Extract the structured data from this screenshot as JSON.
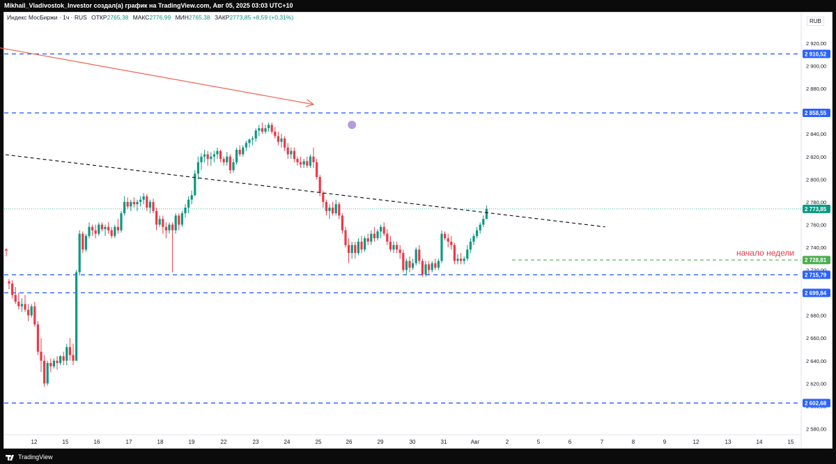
{
  "header": {
    "title": "Mikhail_Vladivostok_Investor создал(а) график на TradingView.com, Авг 05, 2025 03:03 UTC+10"
  },
  "legend": {
    "symbol": "Индекс МосБиржи · 1ч · RUS",
    "open_label": "ОТКР",
    "open_value": "2765,38",
    "high_label": "МАКС",
    "high_value": "2776,99",
    "low_label": "МИН",
    "low_value": "2765,38",
    "close_label": "ЗАКР",
    "close_value": "2773,85",
    "change": "+8,59 (+0,31%)"
  },
  "currency": "RUB",
  "footer": {
    "brand": "TradingView"
  },
  "colors": {
    "up": "#089981",
    "down": "#f23645",
    "level_line": "#2962ff",
    "trend_red": "#f0624f",
    "trend_black": "#131722",
    "annotation": "#f23645",
    "green_level": "#4caf50",
    "marker": "#b39ddb"
  },
  "chart_data": {
    "type": "candlestick",
    "y_axis": {
      "min": 2570,
      "max": 2930,
      "ticks": [
        "2 920,00",
        "2 900,00",
        "2 880,00",
        "2 860,00",
        "2 840,00",
        "2 820,00",
        "2 800,00",
        "2 780,00",
        "2 760,00",
        "2 740,00",
        "2 720,00",
        "2 700,00",
        "2 680,00",
        "2 660,00",
        "2 640,00",
        "2 620,00",
        "2 600,00",
        "2 580,00"
      ]
    },
    "x_axis": {
      "labels": [
        "12",
        "15",
        "16",
        "17",
        "18",
        "19",
        "22",
        "23",
        "24",
        "25",
        "26",
        "29",
        "30",
        "31",
        "Авг",
        "2",
        "5",
        "6",
        "7",
        "8",
        "9",
        "12",
        "13",
        "14",
        "15"
      ]
    },
    "horizontal_levels": [
      {
        "value": 2910.52,
        "label": "2 910,52",
        "style": "dashed-blue"
      },
      {
        "value": 2858.55,
        "label": "2 858,55",
        "style": "dashed-blue"
      },
      {
        "value": 2715.79,
        "label": "2 715,79",
        "style": "dashed-blue"
      },
      {
        "value": 2699.84,
        "label": "2 699,84",
        "style": "dashed-blue"
      },
      {
        "value": 2602.68,
        "label": "2 602,68",
        "style": "dashed-blue"
      }
    ],
    "last_price": {
      "value": 2773.85,
      "label": "2 773,85"
    },
    "week_open": {
      "value": 2728.81,
      "label": "2 728,81",
      "annotation": "начало недели"
    },
    "trendlines": [
      {
        "name": "red-arrow",
        "from": {
          "bar": -5,
          "price": 2917
        },
        "to": {
          "bar": 95,
          "price": 2866
        }
      },
      {
        "name": "black-dashed",
        "from": {
          "bar": -5,
          "price": 2823
        },
        "to": {
          "bar": 186,
          "price": 2758
        }
      }
    ],
    "marker": {
      "bar": 107,
      "price": 2848
    },
    "candles": [
      [
        2710,
        2712,
        2703,
        2708
      ],
      [
        2708,
        2711,
        2695,
        2698
      ],
      [
        2698,
        2705,
        2690,
        2692
      ],
      [
        2692,
        2700,
        2685,
        2688
      ],
      [
        2688,
        2695,
        2683,
        2690
      ],
      [
        2690,
        2698,
        2683,
        2685
      ],
      [
        2685,
        2690,
        2675,
        2680
      ],
      [
        2680,
        2690,
        2678,
        2688
      ],
      [
        2688,
        2692,
        2670,
        2672
      ],
      [
        2672,
        2675,
        2645,
        2648
      ],
      [
        2648,
        2660,
        2630,
        2640
      ],
      [
        2640,
        2645,
        2617,
        2620
      ],
      [
        2620,
        2640,
        2618,
        2638
      ],
      [
        2638,
        2642,
        2630,
        2635
      ],
      [
        2635,
        2642,
        2633,
        2640
      ],
      [
        2640,
        2644,
        2632,
        2638
      ],
      [
        2638,
        2645,
        2636,
        2644
      ],
      [
        2644,
        2648,
        2636,
        2640
      ],
      [
        2640,
        2655,
        2636,
        2652
      ],
      [
        2652,
        2660,
        2640,
        2645
      ],
      [
        2645,
        2655,
        2636,
        2640
      ],
      [
        2640,
        2720,
        2640,
        2718
      ],
      [
        2718,
        2755,
        2715,
        2752
      ],
      [
        2752,
        2754,
        2735,
        2738
      ],
      [
        2738,
        2752,
        2736,
        2750
      ],
      [
        2750,
        2762,
        2748,
        2758
      ],
      [
        2758,
        2760,
        2750,
        2755
      ],
      [
        2755,
        2760,
        2748,
        2752
      ],
      [
        2752,
        2762,
        2750,
        2760
      ],
      [
        2760,
        2762,
        2754,
        2756
      ],
      [
        2756,
        2760,
        2750,
        2758
      ],
      [
        2758,
        2762,
        2752,
        2755
      ],
      [
        2755,
        2758,
        2748,
        2750
      ],
      [
        2750,
        2760,
        2748,
        2758
      ],
      [
        2758,
        2765,
        2752,
        2755
      ],
      [
        2755,
        2772,
        2753,
        2770
      ],
      [
        2770,
        2785,
        2768,
        2780
      ],
      [
        2780,
        2784,
        2774,
        2776
      ],
      [
        2776,
        2782,
        2772,
        2780
      ],
      [
        2780,
        2784,
        2775,
        2778
      ],
      [
        2778,
        2782,
        2772,
        2780
      ],
      [
        2780,
        2785,
        2776,
        2782
      ],
      [
        2782,
        2788,
        2778,
        2785
      ],
      [
        2785,
        2787,
        2772,
        2775
      ],
      [
        2775,
        2782,
        2770,
        2780
      ],
      [
        2780,
        2783,
        2770,
        2772
      ],
      [
        2772,
        2775,
        2755,
        2760
      ],
      [
        2760,
        2768,
        2758,
        2765
      ],
      [
        2765,
        2768,
        2752,
        2758
      ],
      [
        2758,
        2762,
        2748,
        2755
      ],
      [
        2755,
        2762,
        2752,
        2760
      ],
      [
        2760,
        2762,
        2718,
        2755
      ],
      [
        2755,
        2770,
        2752,
        2768
      ],
      [
        2768,
        2770,
        2755,
        2760
      ],
      [
        2760,
        2772,
        2758,
        2770
      ],
      [
        2770,
        2778,
        2766,
        2775
      ],
      [
        2775,
        2785,
        2770,
        2782
      ],
      [
        2782,
        2790,
        2778,
        2786
      ],
      [
        2786,
        2808,
        2785,
        2805
      ],
      [
        2805,
        2820,
        2800,
        2815
      ],
      [
        2815,
        2823,
        2808,
        2820
      ],
      [
        2820,
        2826,
        2815,
        2822
      ],
      [
        2822,
        2825,
        2812,
        2818
      ],
      [
        2818,
        2824,
        2812,
        2820
      ],
      [
        2820,
        2825,
        2815,
        2822
      ],
      [
        2822,
        2828,
        2818,
        2825
      ],
      [
        2825,
        2826,
        2815,
        2818
      ],
      [
        2818,
        2820,
        2812,
        2815
      ],
      [
        2815,
        2824,
        2812,
        2820
      ],
      [
        2820,
        2822,
        2805,
        2808
      ],
      [
        2808,
        2818,
        2806,
        2815
      ],
      [
        2815,
        2828,
        2813,
        2826
      ],
      [
        2826,
        2830,
        2820,
        2822
      ],
      [
        2822,
        2830,
        2820,
        2828
      ],
      [
        2828,
        2834,
        2825,
        2832
      ],
      [
        2832,
        2836,
        2828,
        2835
      ],
      [
        2835,
        2838,
        2830,
        2836
      ],
      [
        2836,
        2845,
        2833,
        2843
      ],
      [
        2843,
        2848,
        2838,
        2845
      ],
      [
        2845,
        2850,
        2840,
        2842
      ],
      [
        2842,
        2848,
        2840,
        2845
      ],
      [
        2845,
        2850,
        2842,
        2848
      ],
      [
        2848,
        2850,
        2840,
        2842
      ],
      [
        2842,
        2846,
        2836,
        2838
      ],
      [
        2838,
        2842,
        2830,
        2833
      ],
      [
        2833,
        2840,
        2828,
        2836
      ],
      [
        2836,
        2838,
        2825,
        2828
      ],
      [
        2828,
        2832,
        2818,
        2822
      ],
      [
        2822,
        2828,
        2818,
        2825
      ],
      [
        2825,
        2828,
        2815,
        2818
      ],
      [
        2818,
        2820,
        2812,
        2815
      ],
      [
        2815,
        2820,
        2810,
        2813
      ],
      [
        2813,
        2818,
        2810,
        2816
      ],
      [
        2816,
        2820,
        2810,
        2812
      ],
      [
        2812,
        2822,
        2810,
        2820
      ],
      [
        2820,
        2828,
        2810,
        2815
      ],
      [
        2815,
        2818,
        2800,
        2802
      ],
      [
        2802,
        2804,
        2785,
        2788
      ],
      [
        2788,
        2790,
        2775,
        2780
      ],
      [
        2780,
        2782,
        2768,
        2772
      ],
      [
        2772,
        2778,
        2765,
        2775
      ],
      [
        2775,
        2780,
        2768,
        2770
      ],
      [
        2770,
        2782,
        2768,
        2778
      ],
      [
        2778,
        2780,
        2765,
        2768
      ],
      [
        2768,
        2770,
        2752,
        2755
      ],
      [
        2755,
        2758,
        2740,
        2742
      ],
      [
        2742,
        2748,
        2726,
        2735
      ],
      [
        2735,
        2745,
        2730,
        2742
      ],
      [
        2742,
        2745,
        2730,
        2735
      ],
      [
        2735,
        2748,
        2733,
        2745
      ],
      [
        2745,
        2750,
        2735,
        2738
      ],
      [
        2738,
        2750,
        2736,
        2748
      ],
      [
        2748,
        2752,
        2742,
        2745
      ],
      [
        2745,
        2755,
        2742,
        2752
      ],
      [
        2752,
        2758,
        2745,
        2748
      ],
      [
        2748,
        2756,
        2746,
        2754
      ],
      [
        2754,
        2760,
        2748,
        2758
      ],
      [
        2758,
        2762,
        2750,
        2752
      ],
      [
        2752,
        2756,
        2742,
        2745
      ],
      [
        2745,
        2750,
        2736,
        2738
      ],
      [
        2738,
        2745,
        2735,
        2742
      ],
      [
        2742,
        2745,
        2735,
        2738
      ],
      [
        2738,
        2742,
        2730,
        2735
      ],
      [
        2735,
        2738,
        2718,
        2720
      ],
      [
        2720,
        2730,
        2716,
        2728
      ],
      [
        2728,
        2732,
        2718,
        2722
      ],
      [
        2722,
        2730,
        2720,
        2726
      ],
      [
        2726,
        2740,
        2724,
        2738
      ],
      [
        2738,
        2742,
        2725,
        2728
      ],
      [
        2728,
        2730,
        2714,
        2716
      ],
      [
        2716,
        2728,
        2714,
        2725
      ],
      [
        2725,
        2728,
        2716,
        2720
      ],
      [
        2720,
        2728,
        2718,
        2726
      ],
      [
        2726,
        2730,
        2720,
        2722
      ],
      [
        2722,
        2730,
        2720,
        2728
      ],
      [
        2728,
        2755,
        2726,
        2752
      ],
      [
        2752,
        2754,
        2746,
        2748
      ],
      [
        2748,
        2752,
        2740,
        2745
      ],
      [
        2745,
        2750,
        2738,
        2742
      ],
      [
        2742,
        2744,
        2725,
        2728
      ],
      [
        2728,
        2734,
        2725,
        2730
      ],
      [
        2730,
        2735,
        2725,
        2728
      ],
      [
        2728,
        2732,
        2725,
        2730
      ],
      [
        2730,
        2742,
        2728,
        2738
      ],
      [
        2738,
        2748,
        2735,
        2745
      ],
      [
        2745,
        2752,
        2742,
        2750
      ],
      [
        2750,
        2758,
        2748,
        2755
      ],
      [
        2755,
        2762,
        2752,
        2760
      ],
      [
        2760,
        2768,
        2758,
        2765
      ],
      [
        2765,
        2776.99,
        2765,
        2773.85
      ]
    ]
  }
}
